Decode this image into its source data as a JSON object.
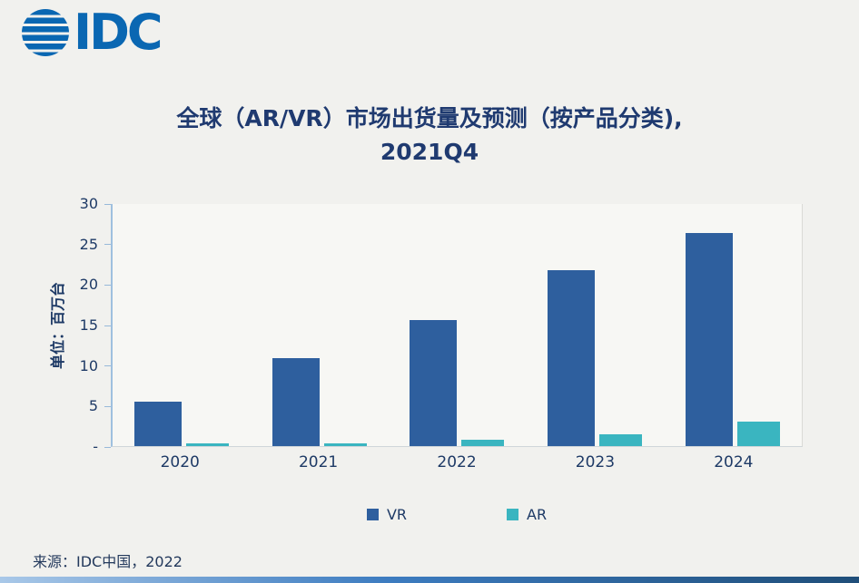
{
  "logo": {
    "text": "IDC"
  },
  "title": {
    "line1": "全球（AR/VR）市场出货量及预测（按产品分类),",
    "line2": "2021Q4"
  },
  "source": "来源：IDC中国，2022",
  "colors": {
    "vr": "#2e5f9e",
    "ar": "#3ab5c0",
    "title_text": "#1f3a70",
    "axis_text": "#1e3a66",
    "logo_blue": "#0a67b2"
  },
  "chart_data": {
    "type": "bar",
    "title": "全球（AR/VR）市场出货量及预测（按产品分类), 2021Q4",
    "categories": [
      "2020",
      "2021",
      "2022",
      "2023",
      "2024"
    ],
    "series": [
      {
        "name": "VR",
        "color": "#2e5f9e",
        "values": [
          5.5,
          10.9,
          15.6,
          21.8,
          26.4
        ]
      },
      {
        "name": "AR",
        "color": "#3ab5c0",
        "values": [
          0.3,
          0.3,
          0.8,
          1.5,
          3.0
        ]
      }
    ],
    "xlabel": "",
    "ylabel": "单位：百万台",
    "ylim": [
      0,
      30
    ],
    "yticks": [
      {
        "v": 30,
        "label": "30"
      },
      {
        "v": 25,
        "label": "25"
      },
      {
        "v": 20,
        "label": "20"
      },
      {
        "v": 15,
        "label": "15"
      },
      {
        "v": 10,
        "label": "10"
      },
      {
        "v": 5,
        "label": "5"
      },
      {
        "v": 0,
        "label": "-"
      }
    ],
    "grid": false,
    "legend_position": "bottom"
  }
}
